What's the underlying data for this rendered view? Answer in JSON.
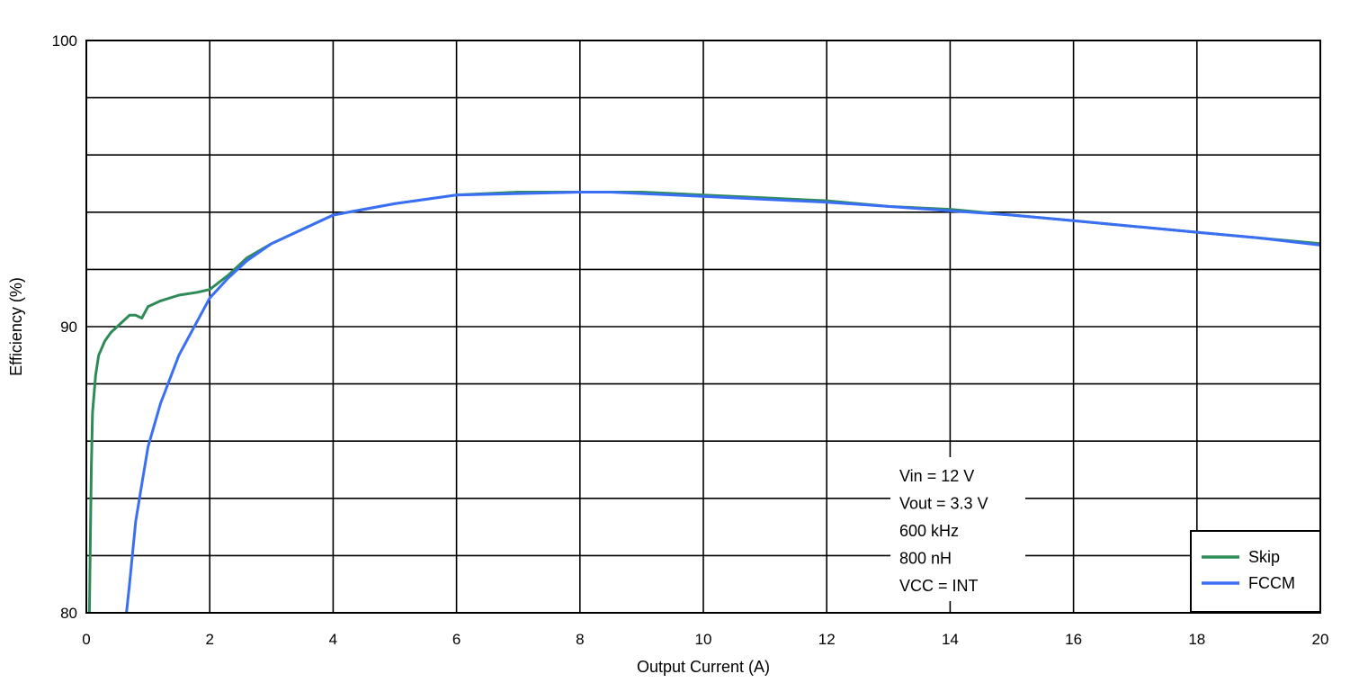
{
  "chart_data": {
    "type": "line",
    "title": "",
    "xlabel": "Output Current (A)",
    "ylabel": "Efficiency (%)",
    "xlim": [
      0,
      20
    ],
    "ylim": [
      80,
      100
    ],
    "x_ticks": [
      0,
      2,
      4,
      6,
      8,
      10,
      12,
      14,
      16,
      18,
      20
    ],
    "y_tick_labels": [
      80,
      90,
      100
    ],
    "grid": true,
    "legend_position": "bottom-right",
    "annotation": [
      "Vin = 12 V",
      "Vout = 3.3 V",
      "600 kHz",
      "800 nH",
      "VCC = INT"
    ],
    "series": [
      {
        "name": "Skip",
        "color": "#2e8b57",
        "x": [
          0.05,
          0.08,
          0.1,
          0.15,
          0.2,
          0.3,
          0.4,
          0.5,
          0.6,
          0.7,
          0.8,
          0.9,
          1.0,
          1.2,
          1.5,
          1.8,
          2.0,
          2.3,
          2.6,
          3.0,
          3.5,
          4.0,
          4.5,
          5.0,
          6.0,
          7.0,
          8.0,
          9.0,
          10.0,
          11.0,
          12.0,
          13.0,
          14.0,
          15.0,
          16.0,
          17.0,
          18.0,
          19.0,
          20.0
        ],
        "y": [
          80.0,
          85.0,
          87.0,
          88.3,
          89.0,
          89.5,
          89.8,
          90.0,
          90.2,
          90.4,
          90.4,
          90.3,
          90.7,
          90.9,
          91.1,
          91.2,
          91.3,
          91.8,
          92.4,
          92.9,
          93.4,
          93.9,
          94.1,
          94.3,
          94.6,
          94.7,
          94.7,
          94.7,
          94.6,
          94.5,
          94.4,
          94.2,
          94.1,
          93.9,
          93.7,
          93.5,
          93.3,
          93.1,
          92.9
        ]
      },
      {
        "name": "FCCM",
        "color": "#3a6ff5",
        "x": [
          0.65,
          0.7,
          0.8,
          0.9,
          1.0,
          1.2,
          1.5,
          1.8,
          2.0,
          2.3,
          2.6,
          3.0,
          3.5,
          4.0,
          4.5,
          5.0,
          5.5,
          6.0,
          7.0,
          8.0,
          8.5,
          9.0,
          10.0,
          11.0,
          12.0,
          13.0,
          14.0,
          15.0,
          16.0,
          17.0,
          18.0,
          19.0,
          20.0
        ],
        "y": [
          80.0,
          81.0,
          83.2,
          84.5,
          85.8,
          87.3,
          89.0,
          90.2,
          91.0,
          91.7,
          92.3,
          92.9,
          93.4,
          93.9,
          94.1,
          94.3,
          94.45,
          94.6,
          94.65,
          94.7,
          94.7,
          94.65,
          94.55,
          94.45,
          94.35,
          94.2,
          94.05,
          93.9,
          93.7,
          93.5,
          93.3,
          93.1,
          92.85
        ]
      }
    ]
  }
}
